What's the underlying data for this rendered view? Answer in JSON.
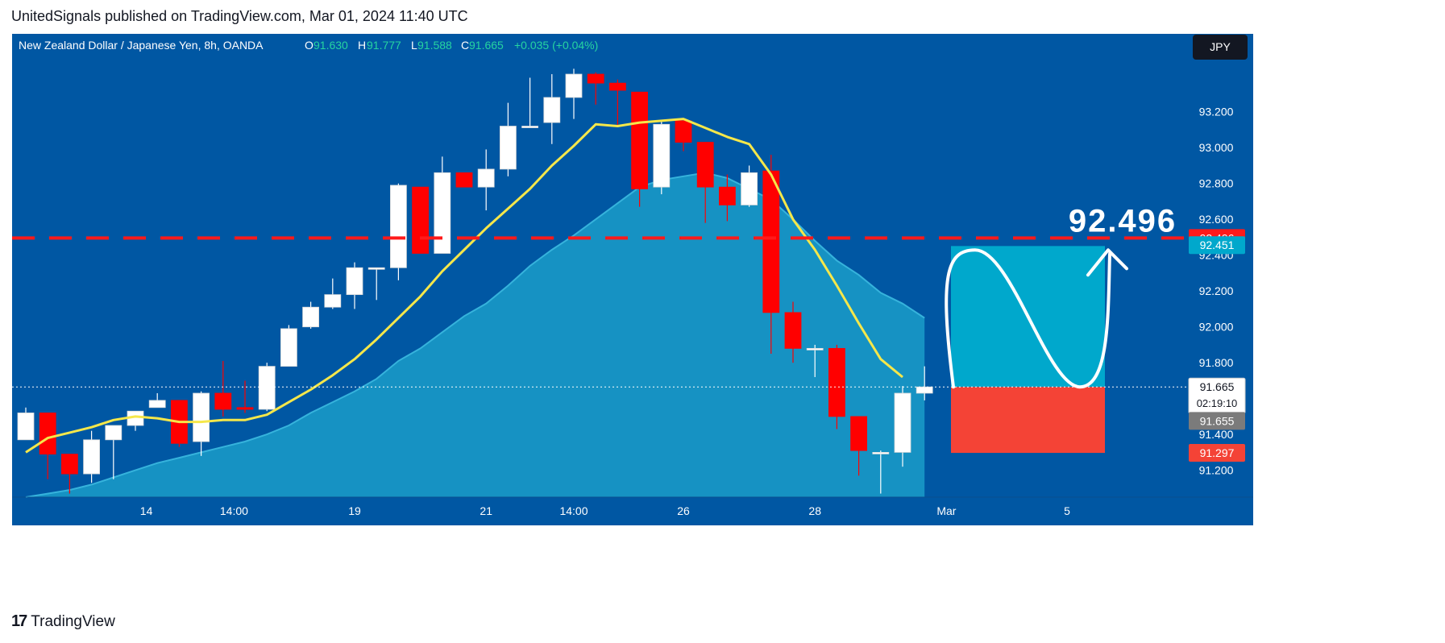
{
  "publisher": "UnitedSignals published on TradingView.com, Mar 01, 2024 11:40 UTC",
  "brand": {
    "logo": "17",
    "name": "TradingView"
  },
  "header": {
    "symbol": "New Zealand Dollar / Japanese Yen, 8h, OANDA",
    "o_label": "O",
    "o": "91.630",
    "h_label": "H",
    "h": "91.777",
    "l_label": "L",
    "l": "91.588",
    "c_label": "C",
    "c": "91.665",
    "change": "+0.035 (+0.04%)"
  },
  "currency_button": "JPY",
  "colors": {
    "background": "#0057a3",
    "up_candle": "#ffffff",
    "down_candle": "#ff0000",
    "ma_line": "#f5e74a",
    "area_fill": "#1a9cc9",
    "target_box": "#00a8cc",
    "stop_box": "#f44336",
    "dashed_line": "#ff1a1a"
  },
  "chart_data": {
    "type": "candlestick",
    "title": "New Zealand Dollar / Japanese Yen, 8h, OANDA",
    "ylim": [
      91.05,
      93.5
    ],
    "y_ticks": [
      {
        "value": 93.2,
        "label": "93.200"
      },
      {
        "value": 93.0,
        "label": "93.000"
      },
      {
        "value": 92.8,
        "label": "92.800"
      },
      {
        "value": 92.6,
        "label": "92.600"
      },
      {
        "value": 92.4,
        "label": "92.400"
      },
      {
        "value": 92.2,
        "label": "92.200"
      },
      {
        "value": 92.0,
        "label": "92.000"
      },
      {
        "value": 91.8,
        "label": "91.800"
      },
      {
        "value": 91.4,
        "label": "91.400"
      },
      {
        "value": 91.2,
        "label": "91.200"
      }
    ],
    "x_ticks": [
      {
        "index": 5.5,
        "label": "14"
      },
      {
        "index": 9.5,
        "label": "14:00"
      },
      {
        "index": 15.0,
        "label": "19"
      },
      {
        "index": 21.0,
        "label": "21"
      },
      {
        "index": 25.0,
        "label": "14:00"
      },
      {
        "index": 30.0,
        "label": "26"
      },
      {
        "index": 36.0,
        "label": "28"
      },
      {
        "index": 42.0,
        "label": "Mar"
      },
      {
        "index": 47.5,
        "label": "5"
      }
    ],
    "candles": [
      {
        "o": 91.37,
        "h": 91.55,
        "l": 91.37,
        "c": 91.52
      },
      {
        "o": 91.52,
        "h": 91.52,
        "l": 91.15,
        "c": 91.29
      },
      {
        "o": 91.29,
        "h": 91.29,
        "l": 91.07,
        "c": 91.18
      },
      {
        "o": 91.18,
        "h": 91.42,
        "l": 91.13,
        "c": 91.37
      },
      {
        "o": 91.37,
        "h": 91.45,
        "l": 91.15,
        "c": 91.45
      },
      {
        "o": 91.45,
        "h": 91.53,
        "l": 91.42,
        "c": 91.53
      },
      {
        "o": 91.55,
        "h": 91.63,
        "l": 91.55,
        "c": 91.59
      },
      {
        "o": 91.59,
        "h": 91.59,
        "l": 91.33,
        "c": 91.35
      },
      {
        "o": 91.36,
        "h": 91.64,
        "l": 91.28,
        "c": 91.63
      },
      {
        "o": 91.63,
        "h": 91.81,
        "l": 91.5,
        "c": 91.54
      },
      {
        "o": 91.55,
        "h": 91.7,
        "l": 91.52,
        "c": 91.54
      },
      {
        "o": 91.54,
        "h": 91.8,
        "l": 91.53,
        "c": 91.78
      },
      {
        "o": 91.78,
        "h": 92.01,
        "l": 91.78,
        "c": 91.99
      },
      {
        "o": 92.0,
        "h": 92.14,
        "l": 91.99,
        "c": 92.11
      },
      {
        "o": 92.11,
        "h": 92.27,
        "l": 92.1,
        "c": 92.18
      },
      {
        "o": 92.18,
        "h": 92.36,
        "l": 92.1,
        "c": 92.33
      },
      {
        "o": 92.33,
        "h": 92.33,
        "l": 92.15,
        "c": 92.33
      },
      {
        "o": 92.33,
        "h": 92.8,
        "l": 92.26,
        "c": 92.79
      },
      {
        "o": 92.78,
        "h": 92.78,
        "l": 92.41,
        "c": 92.41
      },
      {
        "o": 92.41,
        "h": 92.95,
        "l": 92.41,
        "c": 92.86
      },
      {
        "o": 92.86,
        "h": 92.86,
        "l": 92.78,
        "c": 92.78
      },
      {
        "o": 92.78,
        "h": 92.99,
        "l": 92.65,
        "c": 92.88
      },
      {
        "o": 92.88,
        "h": 93.25,
        "l": 92.84,
        "c": 93.12
      },
      {
        "o": 93.12,
        "h": 93.39,
        "l": 93.12,
        "c": 93.12
      },
      {
        "o": 93.14,
        "h": 93.41,
        "l": 93.02,
        "c": 93.28
      },
      {
        "o": 93.28,
        "h": 93.44,
        "l": 93.16,
        "c": 93.41
      },
      {
        "o": 93.41,
        "h": 93.42,
        "l": 93.24,
        "c": 93.36
      },
      {
        "o": 93.36,
        "h": 93.38,
        "l": 93.12,
        "c": 93.32
      },
      {
        "o": 93.31,
        "h": 93.31,
        "l": 92.67,
        "c": 92.77
      },
      {
        "o": 92.78,
        "h": 93.15,
        "l": 92.74,
        "c": 93.13
      },
      {
        "o": 93.15,
        "h": 93.15,
        "l": 92.98,
        "c": 93.03
      },
      {
        "o": 93.03,
        "h": 93.03,
        "l": 92.58,
        "c": 92.78
      },
      {
        "o": 92.78,
        "h": 92.85,
        "l": 92.59,
        "c": 92.68
      },
      {
        "o": 92.68,
        "h": 92.9,
        "l": 92.67,
        "c": 92.86
      },
      {
        "o": 92.87,
        "h": 92.96,
        "l": 91.85,
        "c": 92.08
      },
      {
        "o": 92.08,
        "h": 92.14,
        "l": 91.8,
        "c": 91.88
      },
      {
        "o": 91.88,
        "h": 91.9,
        "l": 91.72,
        "c": 91.88
      },
      {
        "o": 91.88,
        "h": 91.9,
        "l": 91.43,
        "c": 91.5
      },
      {
        "o": 91.5,
        "h": 91.5,
        "l": 91.17,
        "c": 91.31
      },
      {
        "o": 91.3,
        "h": 91.31,
        "l": 91.07,
        "c": 91.3
      },
      {
        "o": 91.3,
        "h": 91.67,
        "l": 91.22,
        "c": 91.63
      },
      {
        "o": 91.63,
        "h": 91.78,
        "l": 91.59,
        "c": 91.665
      }
    ],
    "ma_line": [
      91.3,
      91.38,
      91.41,
      91.44,
      91.48,
      91.5,
      91.49,
      91.47,
      91.47,
      91.48,
      91.48,
      91.51,
      91.58,
      91.65,
      91.73,
      91.82,
      91.93,
      92.05,
      92.17,
      92.31,
      92.43,
      92.55,
      92.66,
      92.77,
      92.9,
      93.01,
      93.13,
      93.12,
      93.14,
      93.15,
      93.16,
      93.11,
      93.06,
      93.02,
      92.85,
      92.6,
      92.43,
      92.23,
      92.02,
      91.82,
      91.72
    ],
    "area": [
      91.05,
      91.07,
      91.09,
      91.12,
      91.16,
      91.2,
      91.24,
      91.27,
      91.3,
      91.33,
      91.36,
      91.4,
      91.45,
      91.52,
      91.58,
      91.64,
      91.71,
      91.81,
      91.88,
      91.97,
      92.06,
      92.13,
      92.23,
      92.34,
      92.43,
      92.51,
      92.6,
      92.69,
      92.78,
      92.82,
      92.84,
      92.86,
      92.83,
      92.77,
      92.71,
      92.6,
      92.48,
      92.37,
      92.29,
      92.19,
      92.13,
      92.05
    ],
    "levels": {
      "dashed": {
        "value": 92.496,
        "label": "92.496"
      },
      "target": {
        "value": 92.451,
        "label": "92.451"
      },
      "entry": {
        "value": 91.665,
        "label": "91.665",
        "countdown": "02:19:10"
      },
      "last": {
        "value": 91.655,
        "label": "91.655"
      },
      "stop": {
        "value": 91.297,
        "label": "91.297"
      }
    },
    "annotation": "92.496"
  }
}
